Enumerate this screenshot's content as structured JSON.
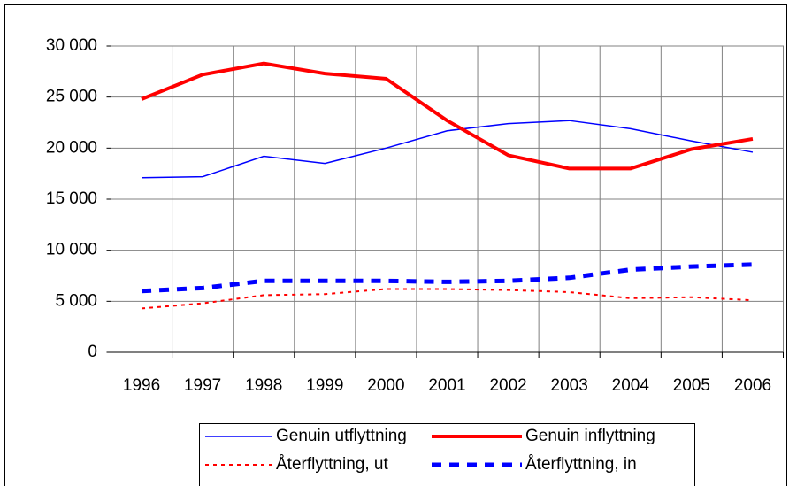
{
  "chart_data": {
    "type": "line",
    "categories": [
      "1996",
      "1997",
      "1998",
      "1999",
      "2000",
      "2001",
      "2002",
      "2003",
      "2004",
      "2005",
      "2006"
    ],
    "series": [
      {
        "name": "Genuin utflyttning",
        "color": "#0000ff",
        "line_style": "thin",
        "values": [
          17100,
          17200,
          19200,
          18500,
          20000,
          21700,
          22400,
          22700,
          21900,
          20700,
          19600
        ]
      },
      {
        "name": "Genuin inflyttning",
        "color": "#ff0000",
        "line_style": "thick",
        "values": [
          24800,
          27200,
          28300,
          27300,
          26800,
          22700,
          19300,
          18000,
          18000,
          19900,
          20900
        ]
      },
      {
        "name": "Återflyttning, ut",
        "color": "#ff0000",
        "line_style": "dotted",
        "values": [
          4300,
          4800,
          5600,
          5700,
          6200,
          6200,
          6100,
          5900,
          5300,
          5400,
          5100
        ]
      },
      {
        "name": "Återflyttning, in",
        "color": "#0000ff",
        "line_style": "dashed",
        "values": [
          6000,
          6300,
          7000,
          7000,
          7000,
          6900,
          7000,
          7300,
          8100,
          8400,
          8600
        ]
      }
    ],
    "ylim": [
      0,
      30000
    ],
    "yticks": [
      0,
      {
        "value": 5000,
        "label": "5 000"
      },
      {
        "value": 10000,
        "label": "10 000"
      },
      {
        "value": 15000,
        "label": "15 000"
      },
      {
        "value": 20000,
        "label": "20 000"
      },
      {
        "value": 25000,
        "label": "25 000"
      },
      {
        "value": 30000,
        "label": "30 000"
      }
    ],
    "grid": true,
    "legend": "bottom"
  }
}
